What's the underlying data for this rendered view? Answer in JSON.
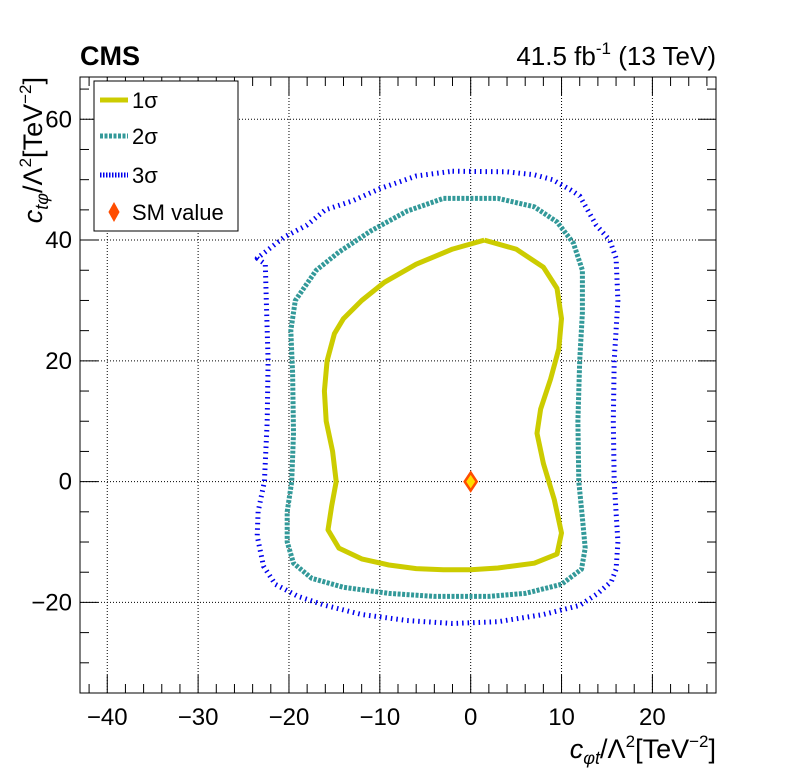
{
  "header": {
    "experiment": "CMS",
    "luminosity": "41.5 fb",
    "luminosity_exp": "-1",
    "energy": " (13 TeV)"
  },
  "axes": {
    "xlabel_var": "c",
    "xlabel_sub": "φt",
    "xlabel_rest": "/Λ",
    "xlabel_sq": "2",
    "xlabel_unit": "[TeV",
    "xlabel_unit_exp": "−2",
    "xlabel_close": "]",
    "ylabel_var": "c",
    "ylabel_sub": "tφ",
    "ylabel_rest": "/Λ",
    "ylabel_sq": "2",
    "ylabel_unit": "[TeV",
    "ylabel_unit_exp": "−2",
    "ylabel_close": "]"
  },
  "legend": {
    "items": [
      {
        "id": "one",
        "label": "1σ",
        "color": "#cccc00"
      },
      {
        "id": "two",
        "label": "2σ",
        "color": "#339999"
      },
      {
        "id": "three",
        "label": "3σ",
        "color": "#0000ee"
      },
      {
        "id": "sm",
        "label": "SM value",
        "color": "#ff4d00"
      }
    ]
  },
  "chart_data": {
    "type": "contour",
    "xlim": [
      -43,
      27
    ],
    "ylim": [
      -35,
      67
    ],
    "x_ticks": [
      -40,
      -30,
      -20,
      -10,
      0,
      10,
      20
    ],
    "x_tick_labels": [
      "−40",
      "−30",
      "−20",
      "−10",
      "0",
      "10",
      "20"
    ],
    "y_ticks": [
      -20,
      0,
      20,
      40,
      60
    ],
    "y_tick_labels": [
      "−20",
      "0",
      "20",
      "40",
      "60"
    ],
    "grid": true,
    "legend_position": "top-left",
    "series": [
      {
        "name": "1σ",
        "style": "solid",
        "color": "#cccc00",
        "points": [
          [
            1.5,
            40
          ],
          [
            5,
            38.5
          ],
          [
            8,
            35.5
          ],
          [
            9.5,
            32
          ],
          [
            10,
            27
          ],
          [
            9.7,
            22
          ],
          [
            8.8,
            17
          ],
          [
            7.7,
            12
          ],
          [
            7.3,
            8
          ],
          [
            8,
            3
          ],
          [
            9.2,
            -3
          ],
          [
            10,
            -8.5
          ],
          [
            9.5,
            -12
          ],
          [
            7,
            -13.5
          ],
          [
            3,
            -14.3
          ],
          [
            0,
            -14.6
          ],
          [
            -3,
            -14.6
          ],
          [
            -6,
            -14.4
          ],
          [
            -9,
            -13.8
          ],
          [
            -12,
            -12.8
          ],
          [
            -14.5,
            -11
          ],
          [
            -15.7,
            -8
          ],
          [
            -15.3,
            -4
          ],
          [
            -14.8,
            0
          ],
          [
            -15.2,
            5
          ],
          [
            -15.9,
            10
          ],
          [
            -16.1,
            15
          ],
          [
            -15.8,
            20
          ],
          [
            -15,
            24.5
          ],
          [
            -14,
            27
          ],
          [
            -12,
            30
          ],
          [
            -9.5,
            33
          ],
          [
            -6,
            36
          ],
          [
            -2,
            38.5
          ],
          [
            1.5,
            40
          ]
        ]
      },
      {
        "name": "2σ",
        "style": "dashed",
        "color": "#339999",
        "points": [
          [
            -3,
            46.9
          ],
          [
            3,
            46.9
          ],
          [
            7,
            45.5
          ],
          [
            9.5,
            43
          ],
          [
            11.3,
            39.5
          ],
          [
            12.3,
            35
          ],
          [
            12.3,
            28
          ],
          [
            12,
            20
          ],
          [
            11.8,
            10
          ],
          [
            11.9,
            0
          ],
          [
            12.3,
            -6
          ],
          [
            12.6,
            -11
          ],
          [
            12.2,
            -14.5
          ],
          [
            10,
            -17
          ],
          [
            6,
            -18.5
          ],
          [
            2,
            -19
          ],
          [
            -4,
            -19
          ],
          [
            -9,
            -18.5
          ],
          [
            -14,
            -17.5
          ],
          [
            -17.5,
            -16
          ],
          [
            -19.5,
            -13.5
          ],
          [
            -20.2,
            -10
          ],
          [
            -20.2,
            -5
          ],
          [
            -19.7,
            0
          ],
          [
            -19.5,
            8
          ],
          [
            -19.6,
            18
          ],
          [
            -19.8,
            25
          ],
          [
            -19.3,
            30
          ],
          [
            -17,
            35
          ],
          [
            -14.5,
            38
          ],
          [
            -11,
            41.5
          ],
          [
            -7,
            44.8
          ],
          [
            -3,
            46.9
          ]
        ]
      },
      {
        "name": "3σ",
        "style": "dotted",
        "color": "#0000ee",
        "points": [
          [
            -2,
            51.4
          ],
          [
            4,
            51.3
          ],
          [
            7,
            50.8
          ],
          [
            9,
            50
          ],
          [
            11,
            48.3
          ],
          [
            12,
            47.3
          ],
          [
            13.8,
            42.5
          ],
          [
            15.3,
            40
          ],
          [
            16,
            37
          ],
          [
            16.2,
            30
          ],
          [
            15.8,
            20
          ],
          [
            15.7,
            10
          ],
          [
            15.8,
            0
          ],
          [
            16.2,
            -10
          ],
          [
            16,
            -14.5
          ],
          [
            15.5,
            -16.5
          ],
          [
            14,
            -18.5
          ],
          [
            12,
            -20.5
          ],
          [
            8,
            -22
          ],
          [
            3,
            -23.2
          ],
          [
            -2,
            -23.5
          ],
          [
            -7,
            -23
          ],
          [
            -12,
            -22
          ],
          [
            -16,
            -20.5
          ],
          [
            -19,
            -19
          ],
          [
            -21.5,
            -17
          ],
          [
            -22.8,
            -14
          ],
          [
            -23.5,
            -9
          ],
          [
            -23.4,
            -5
          ],
          [
            -22.7,
            0
          ],
          [
            -22.4,
            10
          ],
          [
            -22.3,
            20
          ],
          [
            -22.5,
            30
          ],
          [
            -22.6,
            36
          ],
          [
            -23.5,
            37
          ],
          [
            -20.5,
            40.5
          ],
          [
            -18,
            42.5
          ],
          [
            -16,
            45
          ],
          [
            -13,
            46.5
          ],
          [
            -10,
            48.5
          ],
          [
            -6,
            50.6
          ],
          [
            -2,
            51.4
          ]
        ]
      }
    ],
    "markers": [
      {
        "name": "SM value",
        "x": 0,
        "y": 0,
        "shape": "diamond",
        "fill": "#ffdd00",
        "stroke": "#ff4d00"
      }
    ]
  }
}
